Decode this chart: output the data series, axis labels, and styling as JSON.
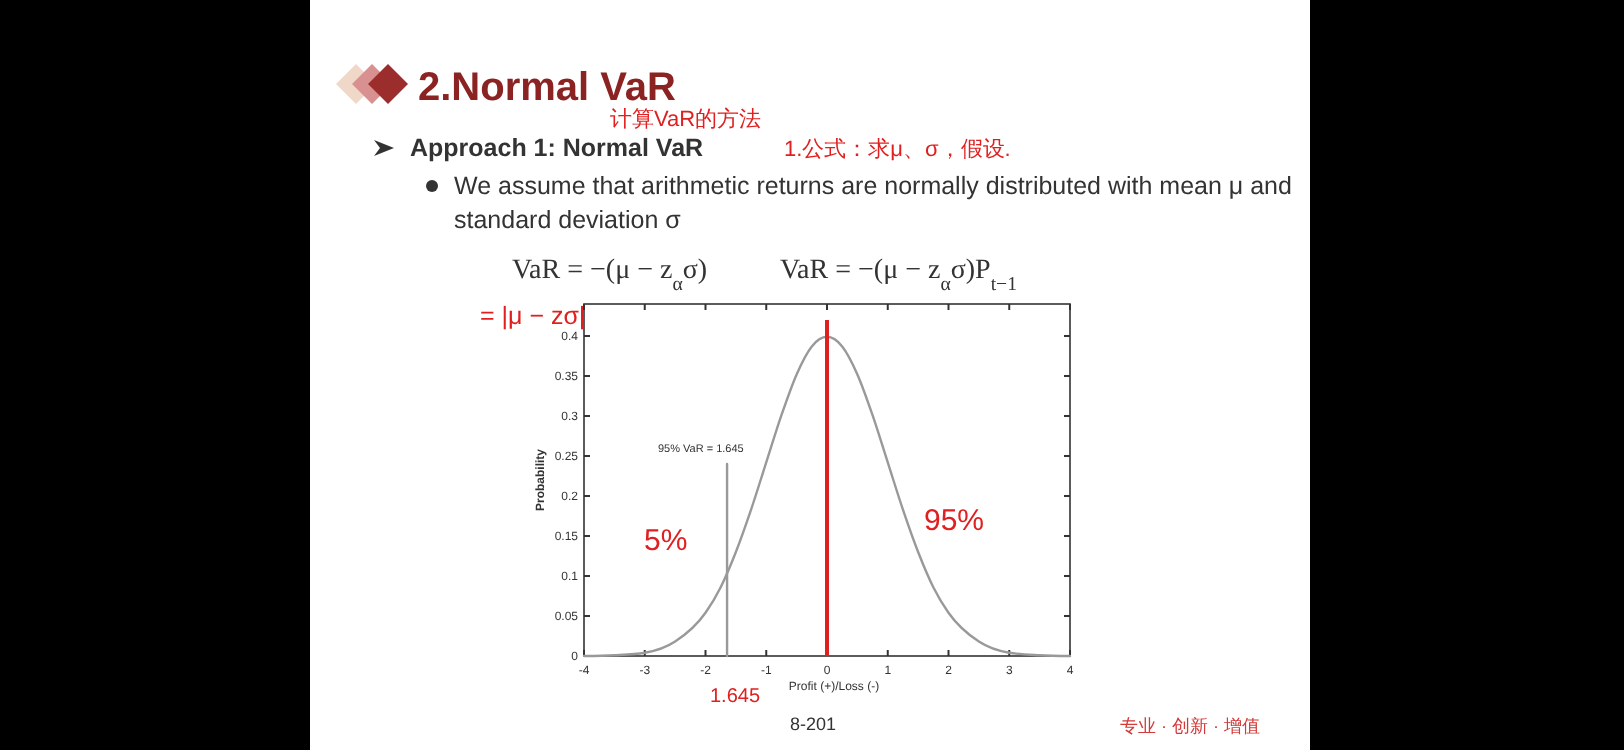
{
  "chart_data": {
    "type": "line",
    "title": "2.Normal VaR",
    "subtitle": "Approach 1: Normal VaR",
    "xlabel": "Profit (+)/Loss (-)",
    "ylabel": "Probability",
    "x": [
      -4,
      -3.5,
      -3,
      -2.5,
      -2,
      -1.75,
      -1.5,
      -1.25,
      -1,
      -0.75,
      -0.5,
      -0.25,
      0,
      0.25,
      0.5,
      0.75,
      1,
      1.25,
      1.5,
      1.75,
      2,
      2.5,
      3,
      3.5,
      4
    ],
    "series": [
      {
        "color": "#999999",
        "values": [
          0,
          0.001,
          0.004,
          0.018,
          0.054,
          0.086,
          0.13,
          0.183,
          0.242,
          0.301,
          0.352,
          0.387,
          0.399,
          0.387,
          0.352,
          0.301,
          0.242,
          0.183,
          0.13,
          0.086,
          0.054,
          0.018,
          0.004,
          0.001,
          0
        ]
      },
      {
        "color": "#999999",
        "x": [
          -1.645,
          -1.645
        ],
        "values": [
          0,
          0.24
        ]
      }
    ],
    "xlim": [
      -4,
      4
    ],
    "xticks": [
      -4,
      -3,
      -2,
      -1,
      0,
      1,
      2,
      3,
      4
    ],
    "ylim": [
      0,
      0.44
    ],
    "yticks": [
      0,
      0.05,
      0.1,
      0.15,
      0.2,
      0.25,
      0.3,
      0.35,
      0.4
    ],
    "ref_lines": [
      {
        "axis": "x",
        "value": 0,
        "color": "#e02020"
      }
    ],
    "annotations": [
      "We assume that arithmetic returns are normally distributed with mean μ and standard deviation σ",
      "VaR = −(μ − z$_{α}$σ)",
      "VaR = −(μ − z$_{α}$σ)P$_{t−1}$",
      "95% VaR = 1.645",
      "5%",
      "95%",
      "1.645",
      "= |μ − zσ|",
      "计算VaR的方法",
      "1.公式：求μ、σ，假设.",
      "8-201",
      "专业 · 创新 · 增值"
    ]
  }
}
